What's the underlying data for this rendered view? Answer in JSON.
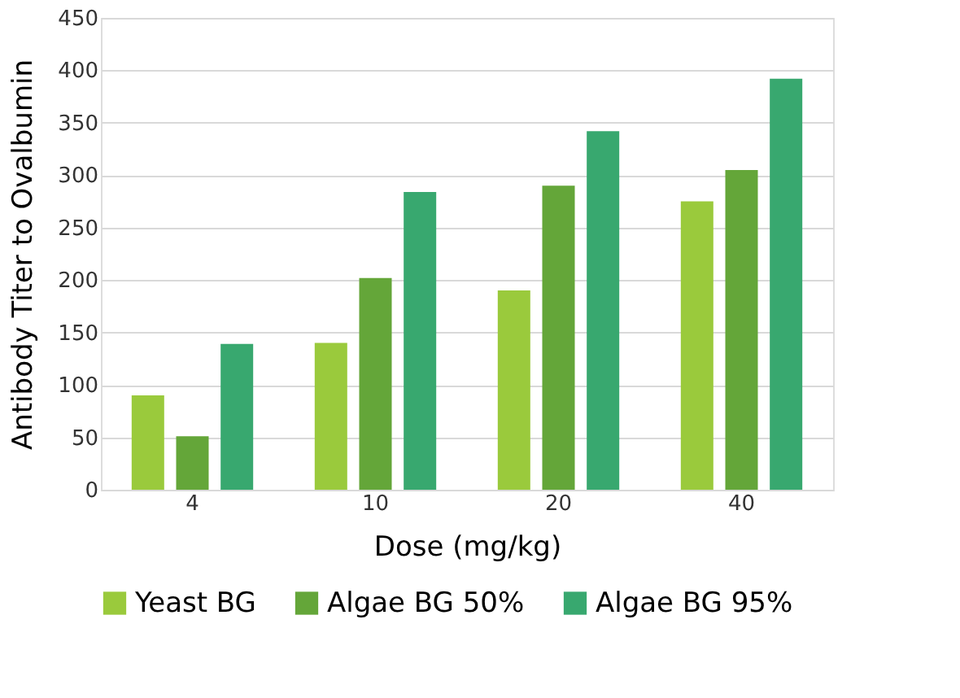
{
  "chart_data": {
    "type": "bar",
    "xlabel": "Dose (mg/kg)",
    "ylabel": "Antibody Titer to Ovalbumin",
    "categories": [
      "4",
      "10",
      "20",
      "40"
    ],
    "series": [
      {
        "name": "Yeast BG",
        "color": "#9aca3c",
        "values": [
          90,
          140,
          190,
          275
        ]
      },
      {
        "name": "Algae BG 50%",
        "color": "#64a639",
        "values": [
          51,
          202,
          290,
          305
        ]
      },
      {
        "name": "Algae BG 95%",
        "color": "#38a86f",
        "values": [
          139,
          284,
          342,
          392
        ]
      }
    ],
    "ylim": [
      0,
      450
    ],
    "yticks": [
      0,
      50,
      100,
      150,
      200,
      250,
      300,
      350,
      400,
      450
    ],
    "grid": "y",
    "legend": "bottom"
  }
}
